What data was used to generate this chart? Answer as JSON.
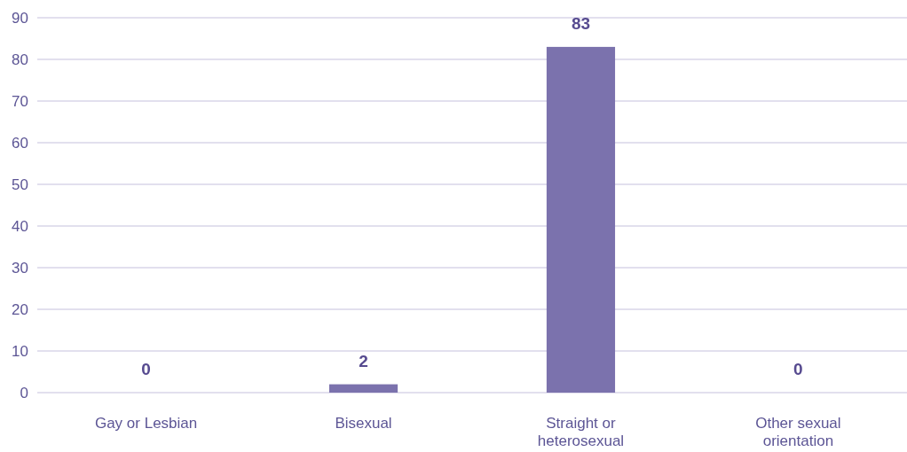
{
  "chart_data": {
    "type": "bar",
    "categories": [
      "Gay or Lesbian",
      "Bisexual",
      "Straight or heterosexual",
      "Other sexual orientation"
    ],
    "values": [
      0,
      2,
      83,
      0
    ],
    "color": "#7b72ad",
    "ylim": [
      0,
      90
    ],
    "yticks": [
      0,
      10,
      20,
      30,
      40,
      50,
      60,
      70,
      80,
      90
    ],
    "grid": "y",
    "data_labels": true
  }
}
